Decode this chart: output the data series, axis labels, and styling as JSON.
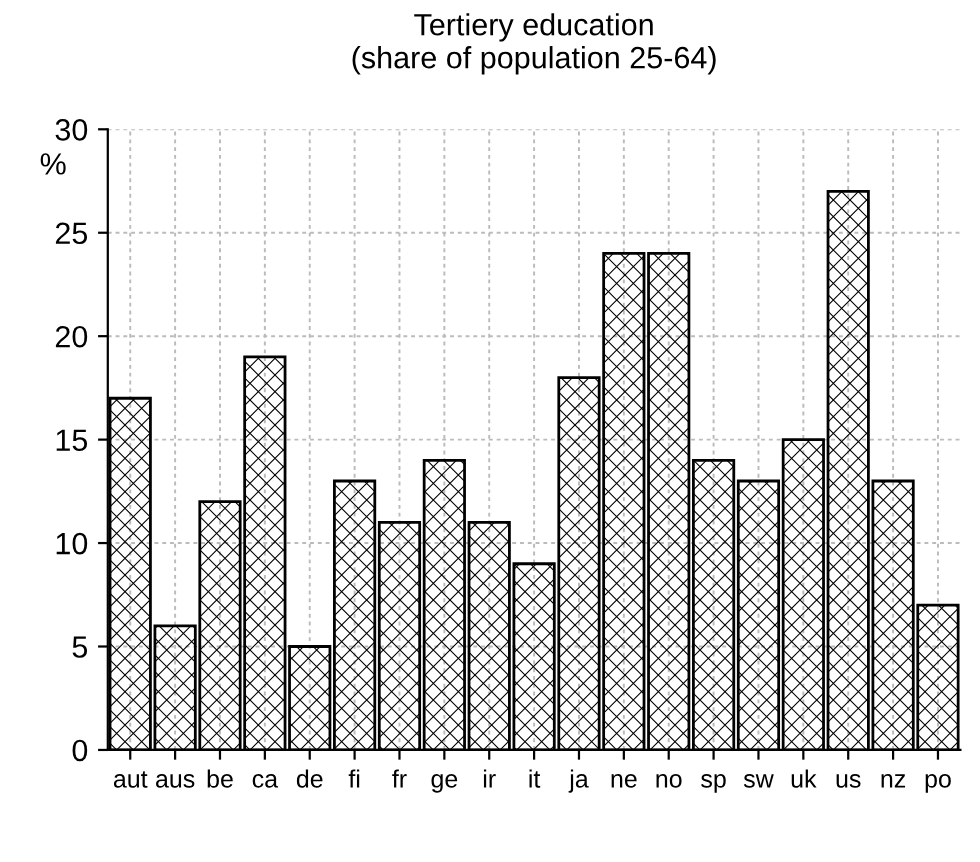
{
  "chart_data": {
    "type": "bar",
    "title": "Tertiery education\n(share of population 25-64)",
    "ylabel": "%",
    "categories": [
      "aut",
      "aus",
      "be",
      "ca",
      "de",
      "fi",
      "fr",
      "ge",
      "ir",
      "it",
      "ja",
      "ne",
      "no",
      "sp",
      "sw",
      "uk",
      "us",
      "nz",
      "po"
    ],
    "values": [
      17,
      6,
      12,
      19,
      5,
      13,
      11,
      14,
      11,
      9,
      18,
      24,
      24,
      14,
      13,
      15,
      27,
      13,
      7
    ],
    "color": "#000000",
    "ylim": [
      0,
      30
    ],
    "yticks": [
      0,
      5,
      10,
      15,
      20,
      25,
      30
    ],
    "grid": true
  }
}
